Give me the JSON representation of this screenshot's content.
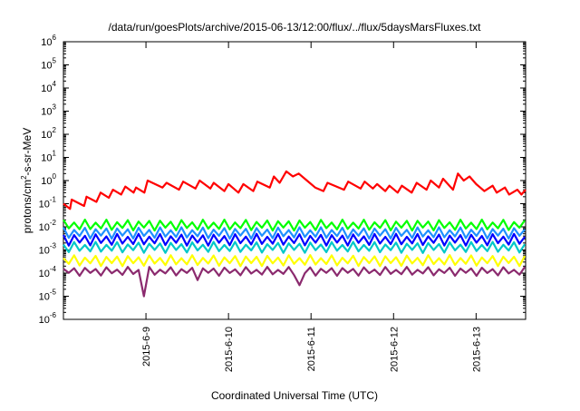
{
  "chart_data": {
    "type": "line",
    "title": "/data/run/goesPlots/archive/2015-06-13/12:00/flux/../flux/5daysMarsFluxes.txt",
    "xlabel": "Coordinated Universal Time (UTC)",
    "ylabel": {
      "pre": "protons/cm",
      "sup": "2",
      "post": "-s-sr-MeV"
    },
    "yscale": "log",
    "ylim": [
      1e-06,
      1000000.0
    ],
    "xlim": [
      8.0,
      13.6
    ],
    "grid": false,
    "legend": "none",
    "y_ticks": [
      {
        "exp": -6,
        "base": "10",
        "sup": "-6"
      },
      {
        "exp": -5,
        "base": "10",
        "sup": "-5"
      },
      {
        "exp": -4,
        "base": "10",
        "sup": "-4"
      },
      {
        "exp": -3,
        "base": "10",
        "sup": "-3"
      },
      {
        "exp": -2,
        "base": "10",
        "sup": "-2"
      },
      {
        "exp": -1,
        "base": "10",
        "sup": "-1"
      },
      {
        "exp": 0,
        "base": "10",
        "sup": "0"
      },
      {
        "exp": 1,
        "base": "10",
        "sup": "1"
      },
      {
        "exp": 2,
        "base": "10",
        "sup": "2"
      },
      {
        "exp": 3,
        "base": "10",
        "sup": "3"
      },
      {
        "exp": 4,
        "base": "10",
        "sup": "4"
      },
      {
        "exp": 5,
        "base": "10",
        "sup": "5"
      },
      {
        "exp": 6,
        "base": "10",
        "sup": "6"
      }
    ],
    "x_ticks": [
      {
        "value": 9,
        "label": "2015-6-9"
      },
      {
        "value": 10,
        "label": "2015-6-10"
      },
      {
        "value": 11,
        "label": "2015-6-11"
      },
      {
        "value": 12,
        "label": "2015-6-12"
      },
      {
        "value": 13,
        "label": "2015-6-13"
      }
    ],
    "series": [
      {
        "color": "#ff0000",
        "x": [
          8.0,
          8.08,
          8.1,
          8.25,
          8.28,
          8.4,
          8.45,
          8.55,
          8.6,
          8.7,
          8.75,
          8.85,
          8.88,
          8.98,
          9.02,
          9.2,
          9.25,
          9.4,
          9.45,
          9.6,
          9.65,
          9.78,
          9.82,
          9.95,
          10.0,
          10.12,
          10.18,
          10.3,
          10.35,
          10.5,
          10.55,
          10.62,
          10.7,
          10.78,
          10.85,
          10.95,
          11.05,
          11.15,
          11.2,
          11.4,
          11.45,
          11.6,
          11.65,
          11.75,
          11.8,
          11.9,
          11.95,
          12.05,
          12.1,
          12.22,
          12.28,
          12.4,
          12.45,
          12.55,
          12.6,
          12.72,
          12.78,
          12.85,
          12.92,
          13.0,
          13.05,
          13.1,
          13.2,
          13.25,
          13.35,
          13.4,
          13.5,
          13.55,
          13.6
        ],
        "y": [
          0.1,
          0.06,
          0.15,
          0.08,
          0.2,
          0.12,
          0.3,
          0.18,
          0.4,
          0.25,
          0.55,
          0.3,
          0.5,
          0.3,
          1.0,
          0.5,
          0.8,
          0.4,
          0.9,
          0.45,
          1.0,
          0.45,
          0.8,
          0.35,
          0.7,
          0.3,
          0.7,
          0.35,
          0.9,
          0.5,
          1.5,
          0.8,
          2.5,
          1.5,
          2.0,
          1.0,
          0.5,
          0.35,
          0.8,
          0.4,
          0.9,
          0.45,
          0.9,
          0.45,
          0.7,
          0.35,
          0.6,
          0.3,
          0.6,
          0.3,
          0.8,
          0.4,
          1.0,
          0.5,
          1.2,
          0.4,
          2.0,
          1.0,
          1.5,
          0.7,
          0.5,
          0.35,
          0.6,
          0.3,
          0.5,
          0.25,
          0.4,
          0.25,
          0.4
        ]
      },
      {
        "color": "#00ff00",
        "center": 0.012,
        "amp": 2.2,
        "period": 0.13
      },
      {
        "color": "#1e90ff",
        "center": 0.0055,
        "amp": 2.3,
        "period": 0.13
      },
      {
        "color": "#0000ff",
        "center": 0.0028,
        "amp": 2.4,
        "period": 0.13
      },
      {
        "color": "#00c8c8",
        "center": 0.0013,
        "amp": 2.2,
        "period": 0.13
      },
      {
        "color": "#ffff00",
        "center": 0.00035,
        "amp": 2.2,
        "period": 0.13
      },
      {
        "color": "#8b2a6e",
        "center": 0.00012,
        "amp": 1.8,
        "period": 0.13,
        "dips": [
          {
            "x": 8.97,
            "y": 1e-05
          },
          {
            "x": 10.85,
            "y": 3e-05
          },
          {
            "x": 9.65,
            "y": 5e-05
          }
        ]
      }
    ]
  }
}
